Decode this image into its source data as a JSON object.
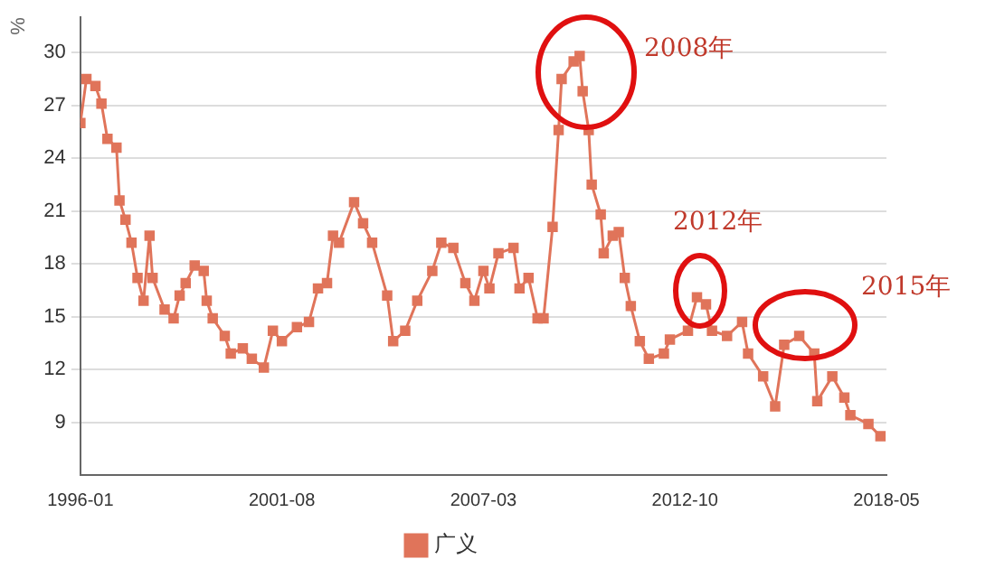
{
  "chart_data": {
    "type": "line",
    "ylabel": "%",
    "annotations": [
      "2008年",
      "2012年",
      "2015年"
    ],
    "x": [
      "1996-01",
      "1996-03",
      "1996-06",
      "1996-08",
      "1996-10",
      "1997-01",
      "1997-02",
      "1997-04",
      "1997-06",
      "1997-08",
      "1997-10",
      "1997-12",
      "1998-01",
      "1998-05",
      "1998-08",
      "1998-10",
      "1998-12",
      "1999-03",
      "1999-06",
      "1999-07",
      "1999-09",
      "2000-01",
      "2000-03",
      "2000-07",
      "2000-10",
      "2001-02",
      "2001-05",
      "2001-08",
      "2002-01",
      "2002-05",
      "2002-08",
      "2002-11",
      "2003-01",
      "2003-03",
      "2003-08",
      "2003-11",
      "2004-02",
      "2004-07",
      "2004-09",
      "2005-01",
      "2005-05",
      "2005-10",
      "2006-01",
      "2006-05",
      "2006-09",
      "2006-12",
      "2007-03",
      "2007-05",
      "2007-08",
      "2008-01",
      "2008-03",
      "2008-06",
      "2008-09",
      "2008-11",
      "2009-02",
      "2009-04",
      "2009-05",
      "2009-09",
      "2009-11",
      "2009-12",
      "2010-02",
      "2010-03",
      "2010-06",
      "2010-07",
      "2010-10",
      "2010-12",
      "2011-02",
      "2011-04",
      "2011-07",
      "2011-10",
      "2012-03",
      "2012-05",
      "2012-11",
      "2013-02",
      "2013-05",
      "2013-07",
      "2013-12",
      "2014-05",
      "2014-07",
      "2014-12",
      "2015-04",
      "2015-07",
      "2015-12",
      "2016-05",
      "2016-06",
      "2016-11",
      "2017-03",
      "2017-05",
      "2017-11",
      "2018-03"
    ],
    "series": [
      {
        "name": "广义",
        "color": "#e0745a",
        "values": [
          26.0,
          28.5,
          28.1,
          27.1,
          25.1,
          24.6,
          21.6,
          20.5,
          19.2,
          17.2,
          15.9,
          19.6,
          17.2,
          15.4,
          14.9,
          16.2,
          16.9,
          17.9,
          17.6,
          15.9,
          14.9,
          13.9,
          12.9,
          13.2,
          12.6,
          12.1,
          14.2,
          13.6,
          14.4,
          14.7,
          16.6,
          16.9,
          19.6,
          19.2,
          21.5,
          20.3,
          19.2,
          16.2,
          13.6,
          14.2,
          15.9,
          17.6,
          19.2,
          18.9,
          16.9,
          15.9,
          17.6,
          16.6,
          18.6,
          18.9,
          16.6,
          17.2,
          14.9,
          14.9,
          20.1,
          25.6,
          28.5,
          29.5,
          29.8,
          27.8,
          25.6,
          22.5,
          20.8,
          18.6,
          19.6,
          19.8,
          17.2,
          15.6,
          13.6,
          12.6,
          12.9,
          13.7,
          14.2,
          16.1,
          15.7,
          14.2,
          13.9,
          14.7,
          12.9,
          11.6,
          9.9,
          13.4,
          13.9,
          12.9,
          10.2,
          11.6,
          10.4,
          9.4,
          8.9,
          8.2
        ]
      }
    ],
    "xlim": [
      "1996-01",
      "2018-05"
    ],
    "xticks": [
      "1996-01",
      "2001-08",
      "2007-03",
      "2012-10",
      "2018-05"
    ],
    "ylim": [
      6,
      32
    ],
    "yticks": [
      9,
      12,
      15,
      18,
      21,
      24,
      27,
      30
    ],
    "grid": "y",
    "legend": "bottom",
    "marker": "square",
    "line_style": "solid"
  }
}
